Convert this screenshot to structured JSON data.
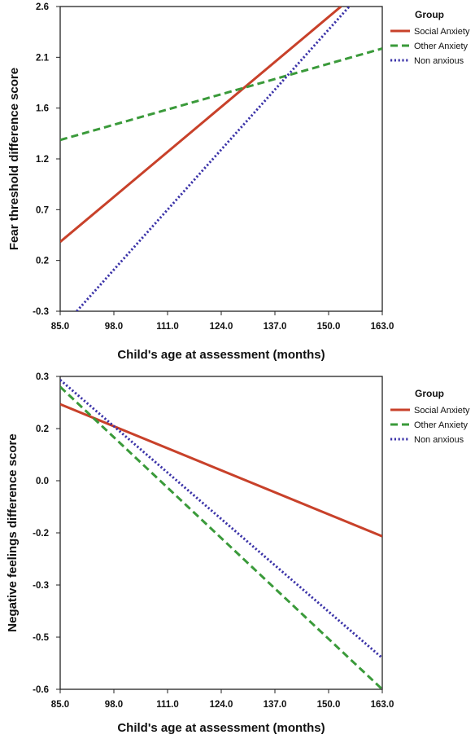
{
  "chart_data": [
    {
      "type": "line",
      "xlabel": "Child's age at assessment (months)",
      "ylabel": "Fear threshold difference score",
      "x_ticks": [
        "85.0",
        "98.0",
        "111.0",
        "124.0",
        "137.0",
        "150.0",
        "163.0"
      ],
      "y_ticks": [
        "-0.3",
        "0.2",
        "0.7",
        "1.2",
        "1.6",
        "2.1",
        "2.6"
      ],
      "xlim": [
        85,
        163
      ],
      "ylim": [
        -0.3,
        2.6
      ],
      "legend": {
        "title": "Group",
        "position": "right"
      },
      "series": [
        {
          "name": "Social Anxiety",
          "color": "#c8412a",
          "style": "solid",
          "x": [
            85,
            153
          ],
          "y": [
            0.36,
            2.6
          ]
        },
        {
          "name": "Other Anxiety",
          "color": "#3a9a3a",
          "style": "dashed",
          "x": [
            85,
            163
          ],
          "y": [
            1.33,
            2.2
          ]
        },
        {
          "name": "Non anxious",
          "color": "#3b33a8",
          "style": "dotted",
          "x": [
            89,
            155
          ],
          "y": [
            -0.3,
            2.6
          ]
        }
      ]
    },
    {
      "type": "line",
      "xlabel": "Child's age at assessment (months)",
      "ylabel": "Negative feelings difference score",
      "x_ticks": [
        "85.0",
        "98.0",
        "111.0",
        "124.0",
        "137.0",
        "150.0",
        "163.0"
      ],
      "y_ticks": [
        "-0.6",
        "-0.5",
        "-0.3",
        "-0.2",
        "0.0",
        "0.2",
        "0.3"
      ],
      "xlim": [
        85,
        163
      ],
      "ylim": [
        -0.6,
        0.3
      ],
      "legend": {
        "title": "Group",
        "position": "right"
      },
      "series": [
        {
          "name": "Social Anxiety",
          "color": "#c8412a",
          "style": "solid",
          "x": [
            85,
            163
          ],
          "y": [
            0.22,
            -0.16
          ]
        },
        {
          "name": "Other Anxiety",
          "color": "#3a9a3a",
          "style": "dashed",
          "x": [
            85,
            163
          ],
          "y": [
            0.27,
            -0.6
          ]
        },
        {
          "name": "Non anxious",
          "color": "#3b33a8",
          "style": "dotted",
          "x": [
            85,
            163
          ],
          "y": [
            0.29,
            -0.51
          ]
        }
      ]
    }
  ]
}
